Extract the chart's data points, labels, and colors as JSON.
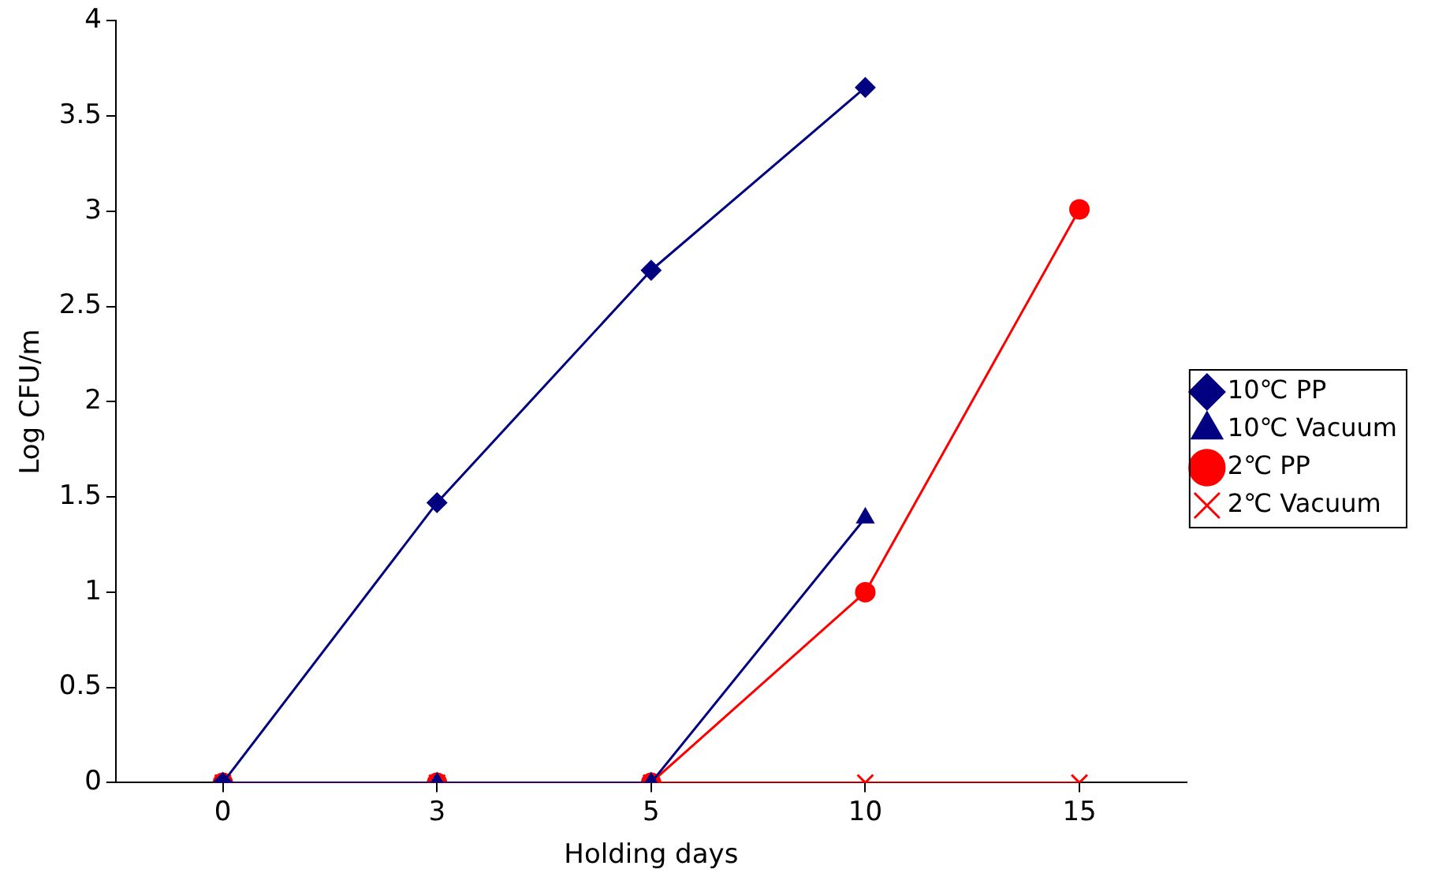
{
  "chart_data": {
    "type": "line",
    "xlabel": "Holding days",
    "ylabel": "Log CFU/m",
    "categories": [
      "0",
      "3",
      "5",
      "10",
      "15"
    ],
    "series": [
      {
        "name": "10℃ PP",
        "color": "#000080",
        "marker": "diamond",
        "values": [
          0,
          1.47,
          2.69,
          3.65,
          null
        ]
      },
      {
        "name": "10℃ Vacuum",
        "color": "#000080",
        "marker": "triangle",
        "values": [
          0,
          0,
          0,
          1.39,
          null
        ]
      },
      {
        "name": "2℃ PP",
        "color": "#ff0000",
        "marker": "circle",
        "values": [
          0,
          0,
          0,
          1.0,
          3.01
        ]
      },
      {
        "name": "2℃ Vacuum",
        "color": "#ff0000",
        "marker": "cross",
        "values": [
          0,
          0,
          0,
          0,
          0
        ]
      }
    ],
    "ylim": [
      0,
      4
    ],
    "yticks": [
      0,
      0.5,
      1,
      1.5,
      2,
      2.5,
      3,
      3.5,
      4
    ],
    "grid": false,
    "legend": "right",
    "line_style": "solid"
  }
}
